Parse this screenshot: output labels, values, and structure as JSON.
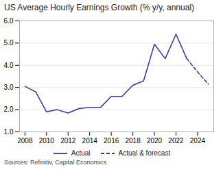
{
  "chart_data": {
    "type": "line",
    "title": "US Average Hourly Earnings Growth (% y/y, annual)",
    "source": "Sources: Refinitiv, Capital Economics",
    "series": [
      {
        "name": "Actual",
        "color": "#3333aa",
        "line_style": "solid",
        "x": [
          2008,
          2009,
          2010,
          2011,
          2012,
          2013,
          2014,
          2015,
          2016,
          2017,
          2018,
          2019,
          2020,
          2021,
          2022,
          2023
        ],
        "values": [
          3.05,
          2.8,
          1.9,
          2.0,
          1.85,
          2.05,
          2.1,
          2.1,
          2.6,
          2.6,
          3.1,
          3.3,
          4.95,
          4.3,
          5.4,
          4.3
        ]
      },
      {
        "name": "Actual & forecast",
        "color": "#3333aa",
        "line_style": "dashed",
        "x": [
          2023,
          2024,
          2025
        ],
        "values": [
          4.3,
          3.7,
          3.15
        ]
      }
    ],
    "xlim": [
      2007.5,
      2025.5
    ],
    "xticks": [
      2008,
      2010,
      2012,
      2014,
      2016,
      2018,
      2020,
      2022,
      2024
    ],
    "ylim": [
      1,
      6
    ],
    "yticks": [
      1,
      2,
      3,
      4,
      5,
      6
    ],
    "grid": "y",
    "legend": "bottom"
  }
}
